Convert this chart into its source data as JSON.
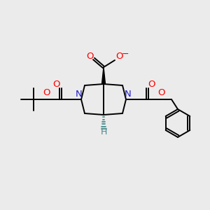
{
  "bg_color": "#ebebeb",
  "atom_colors": {
    "O": "#ff0000",
    "N": "#2020cc",
    "C": "#000000",
    "H": "#4a8a8a"
  },
  "bond_color": "#000000"
}
